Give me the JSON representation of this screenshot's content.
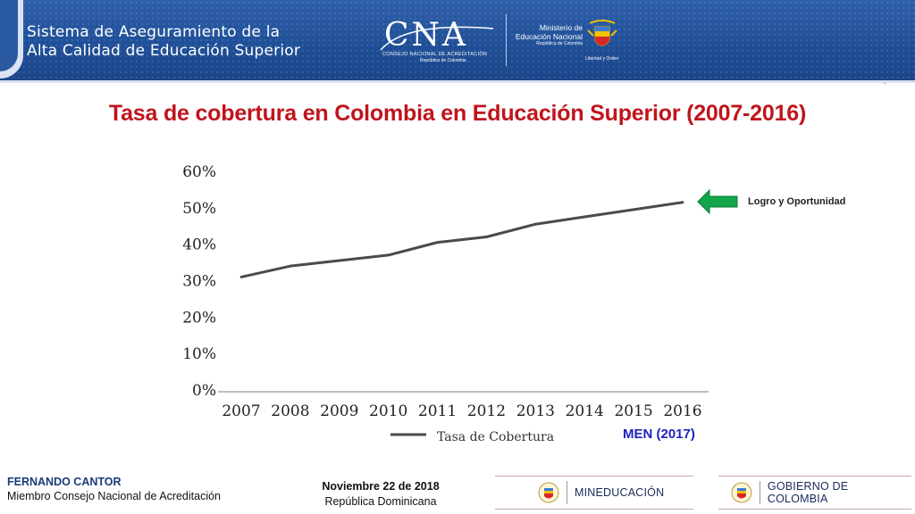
{
  "header": {
    "system_title_line1": "Sistema de Aseguramiento de la",
    "system_title_line2": "Alta Calidad de Educación Superior",
    "cna_logo_text": "CNA",
    "cna_subtitle": "CONSEJO NACIONAL DE ACREDITACIÓN",
    "cna_country": "República de Colombia",
    "ministry_line1": "Ministerio de",
    "ministry_line2": "Educación Nacional",
    "ministry_line3": "República de Colombia",
    "coat_caption": "Libertad y Orden",
    "brand_color": "#1f4f97"
  },
  "slide": {
    "title": "Tasa de cobertura en Colombia en Educación Superior (2007-2016)",
    "title_color": "#c0141c",
    "corner_mark": "¨"
  },
  "chart_data": {
    "type": "line",
    "x": [
      "2007",
      "2008",
      "2009",
      "2010",
      "2011",
      "2012",
      "2013",
      "2014",
      "2015",
      "2016"
    ],
    "series": [
      {
        "name": "Tasa de Cobertura",
        "values": [
          31.0,
          34.0,
          35.5,
          37.0,
          40.5,
          42.0,
          45.5,
          47.5,
          49.5,
          51.5
        ],
        "color": "#4a4a4a"
      }
    ],
    "y_ticks": [
      "0%",
      "10%",
      "20%",
      "30%",
      "40%",
      "50%",
      "60%"
    ],
    "ylim": [
      0,
      60
    ],
    "legend_position": "bottom",
    "grid": false,
    "annotation": "Logro y Oportunidad",
    "arrow_color": "#12a54a",
    "source": "MEN (2017)"
  },
  "footer": {
    "presenter_name": "FERNANDO CANTOR",
    "presenter_role": "Miembro Consejo Nacional de Acreditación",
    "date": "Noviembre 22 de 2018",
    "place": "República Dominicana",
    "badge_ministry": "MINEDUCACIÓN",
    "badge_government": "GOBIERNO DE COLOMBIA"
  }
}
